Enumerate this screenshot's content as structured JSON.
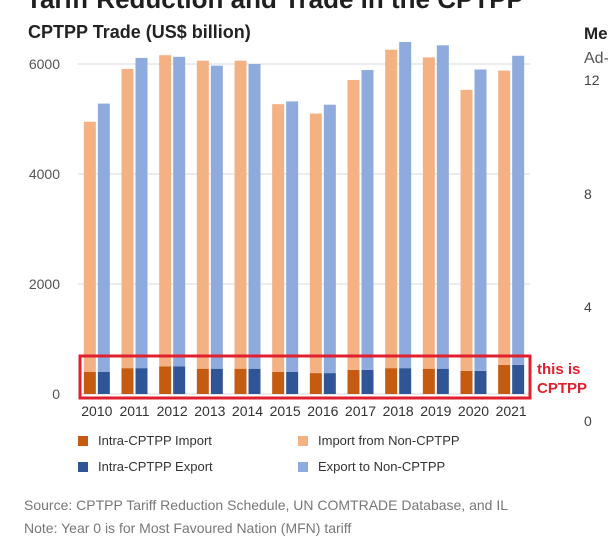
{
  "banner_title": "Tariff Reduction and Trade in the CPTPP",
  "chart_data": {
    "type": "bar",
    "title": "CPTPP Trade (US$ billion)",
    "categories": [
      "2010",
      "2011",
      "2012",
      "2013",
      "2014",
      "2015",
      "2016",
      "2017",
      "2018",
      "2019",
      "2020",
      "2021"
    ],
    "ylim": [
      0,
      6000
    ],
    "yticks": [
      "0",
      "2000",
      "4000",
      "6000"
    ],
    "grid": true,
    "legend_position": "bottom",
    "series": [
      {
        "name": "Intra-CPTPP Import",
        "color": "#c55a11",
        "values": [
          400,
          470,
          500,
          460,
          460,
          400,
          380,
          440,
          470,
          460,
          420,
          530
        ]
      },
      {
        "name": "Intra-CPTPP Export",
        "color": "#2f5597",
        "values": [
          400,
          470,
          500,
          460,
          460,
          400,
          380,
          440,
          470,
          460,
          420,
          530
        ]
      },
      {
        "name": "Import from Non-CPTPP",
        "color": "#f4b183",
        "values": [
          4550,
          5440,
          5660,
          5600,
          5600,
          4870,
          4720,
          5270,
          5790,
          5660,
          5110,
          5350
        ]
      },
      {
        "name": "Export to Non-CPTPP",
        "color": "#8faadc",
        "values": [
          4880,
          5640,
          5630,
          5510,
          5540,
          4920,
          4880,
          5450,
          5930,
          5880,
          5480,
          5620
        ]
      }
    ]
  },
  "legend": [
    {
      "label": "Intra-CPTPP Import",
      "color": "#c55a11"
    },
    {
      "label": "Import from Non-CPTPP",
      "color": "#f4b183"
    },
    {
      "label": "Intra-CPTPP Export",
      "color": "#2f5597"
    },
    {
      "label": "Export to Non-CPTPP",
      "color": "#8faadc"
    }
  ],
  "annotation": {
    "text": "this is\nCPTPP",
    "color": "#e0202e"
  },
  "right_panel": {
    "title": "Me",
    "subtitle": "Ad-",
    "yticks": [
      "12",
      "8",
      "4",
      "0"
    ]
  },
  "footer": {
    "source": "Source: CPTPP Tariff Reduction Schedule, UN COMTRADE Database, and IL",
    "note": "Note: Year 0 is for Most Favoured Nation (MFN) tariff"
  }
}
